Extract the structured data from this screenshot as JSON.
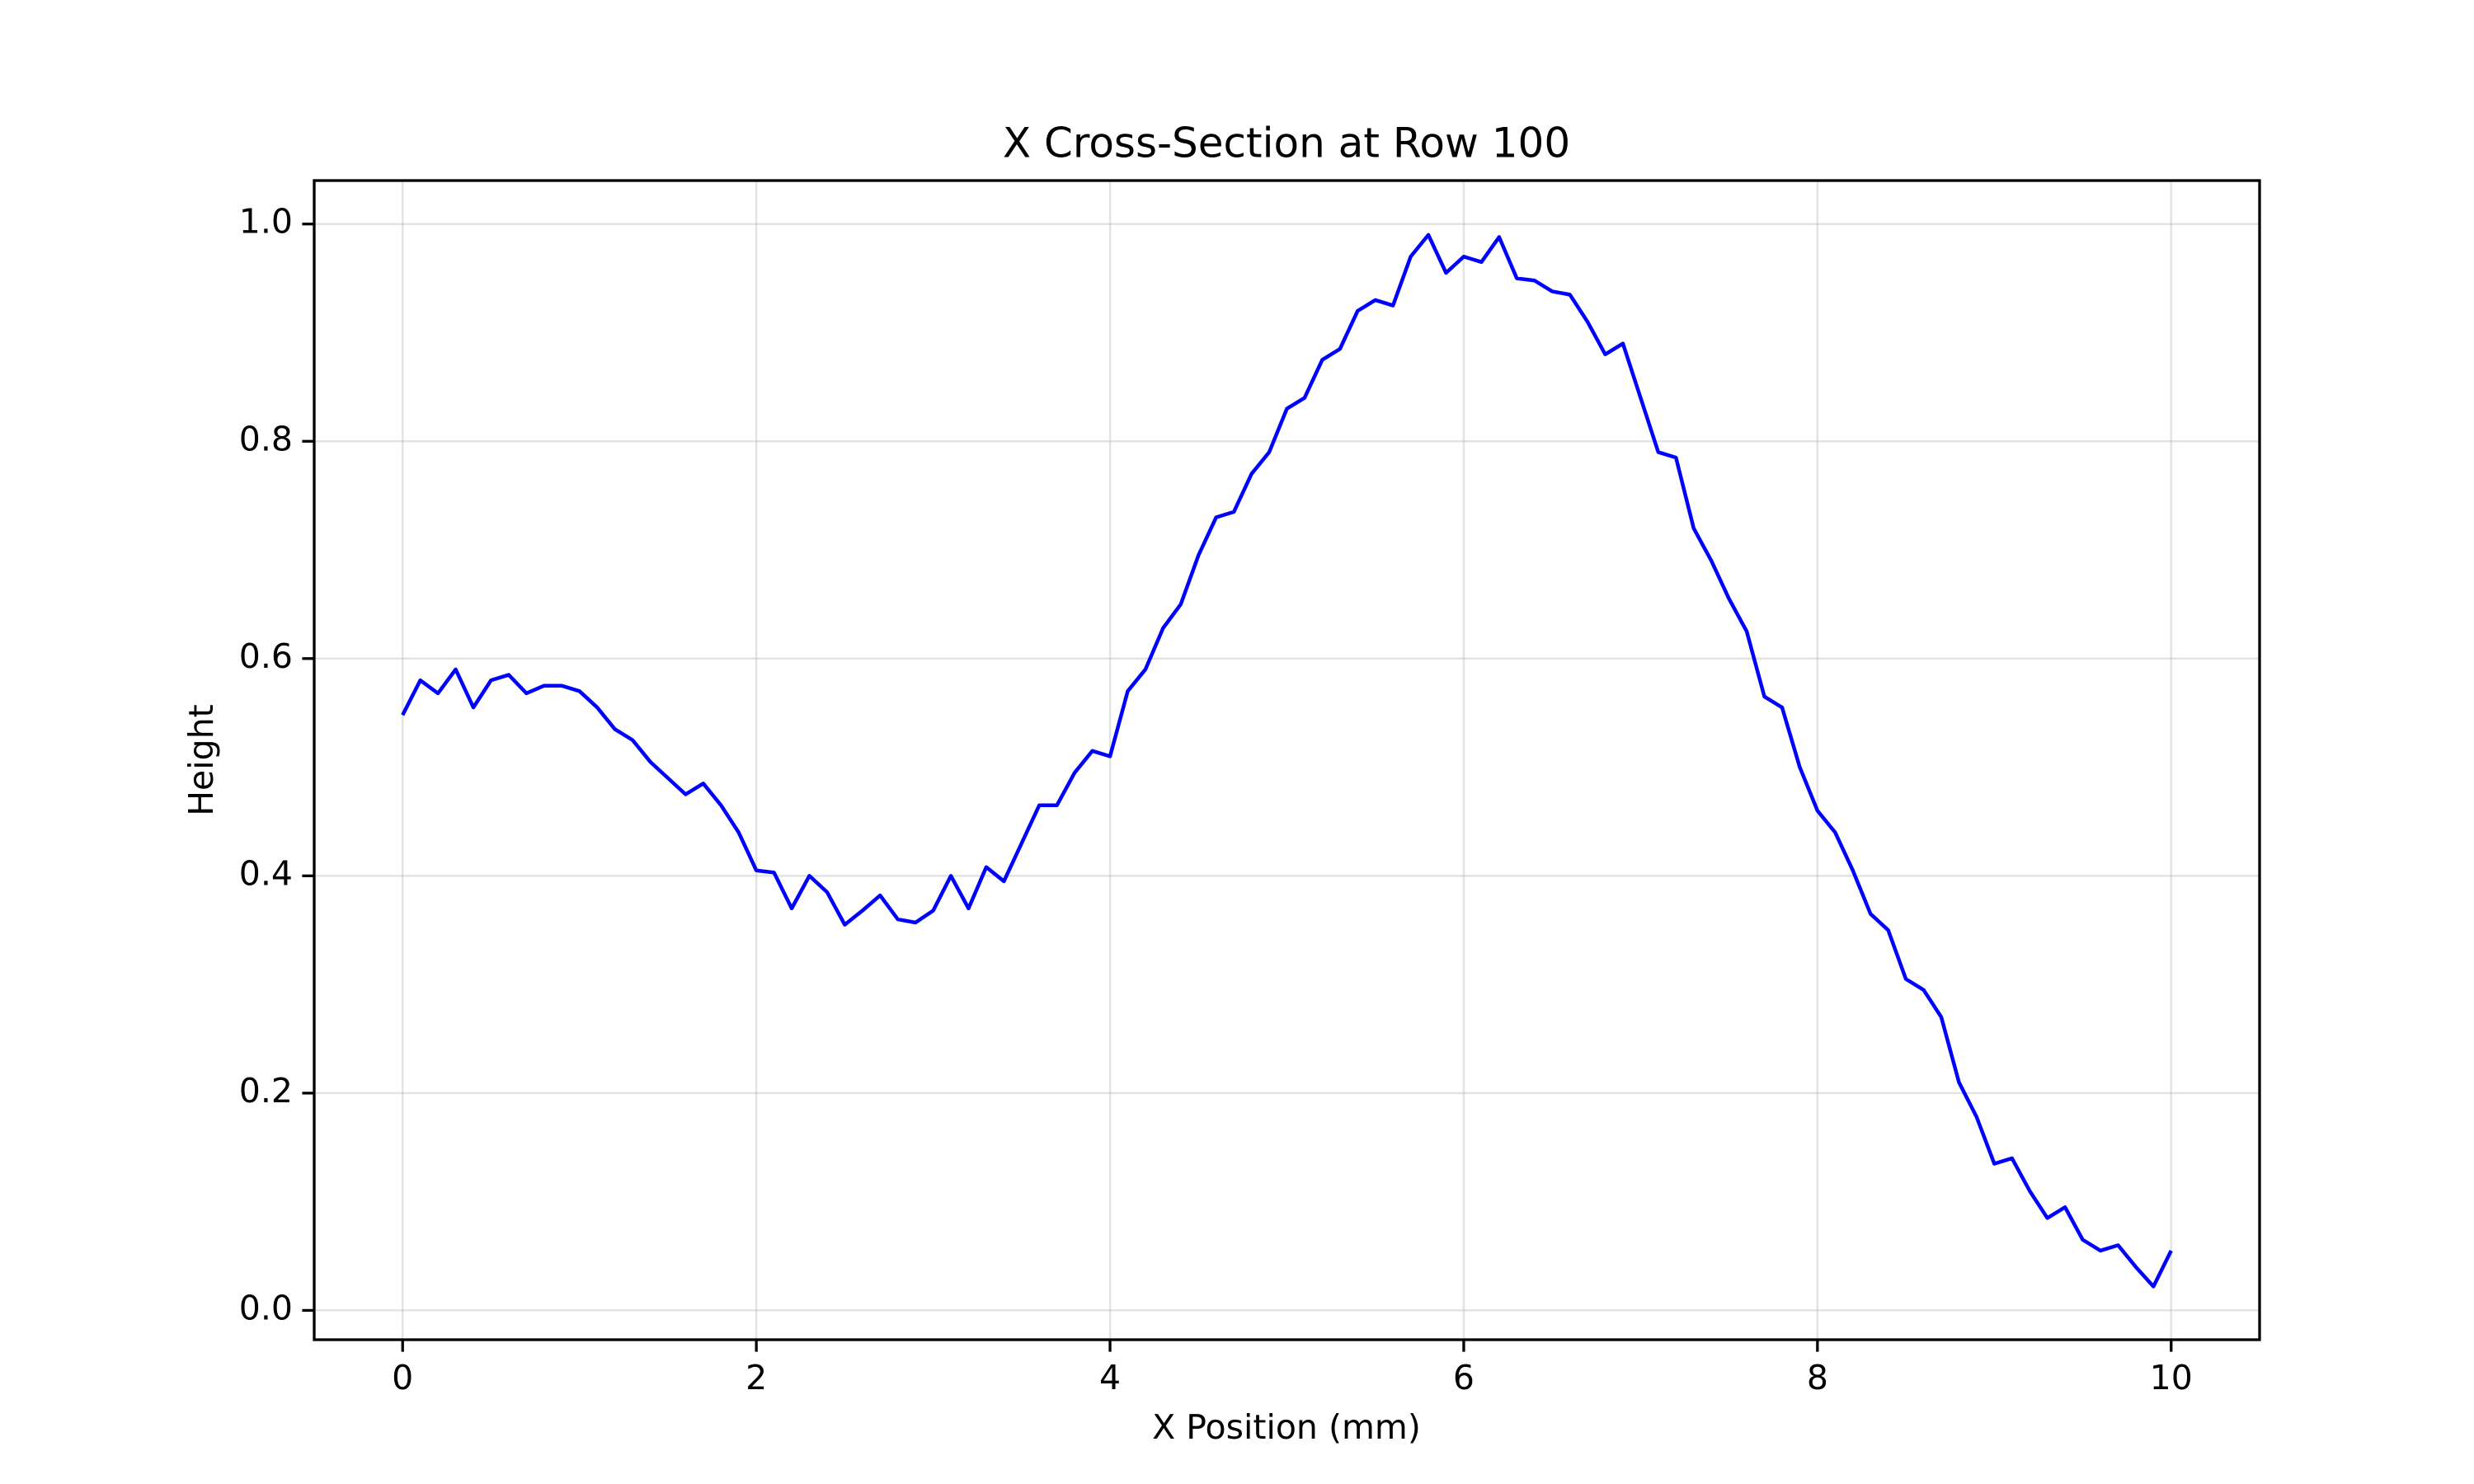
{
  "chart_data": {
    "type": "line",
    "title": "X Cross-Section at Row 100",
    "xlabel": "X Position (mm)",
    "ylabel": "Height",
    "x": [
      0,
      0.1,
      0.2,
      0.3,
      0.4,
      0.5,
      0.6,
      0.7,
      0.8,
      0.9,
      1,
      1.1,
      1.2,
      1.3,
      1.4,
      1.5,
      1.6,
      1.7,
      1.8,
      1.9,
      2,
      2.1,
      2.2,
      2.3,
      2.4,
      2.5,
      2.6,
      2.7,
      2.8,
      2.9,
      3,
      3.1,
      3.2,
      3.3,
      3.4,
      3.5,
      3.6,
      3.7,
      3.8,
      3.9,
      4,
      4.1,
      4.2,
      4.3,
      4.4,
      4.5,
      4.6,
      4.7,
      4.8,
      4.9,
      5,
      5.1,
      5.2,
      5.3,
      5.4,
      5.5,
      5.6,
      5.7,
      5.8,
      5.9,
      6,
      6.1,
      6.2,
      6.3,
      6.4,
      6.5,
      6.6,
      6.7,
      6.8,
      6.9,
      7,
      7.1,
      7.2,
      7.3,
      7.4,
      7.5,
      7.6,
      7.7,
      7.8,
      7.9,
      8,
      8.1,
      8.2,
      8.3,
      8.4,
      8.5,
      8.6,
      8.7,
      8.8,
      8.9,
      9,
      9.1,
      9.2,
      9.3,
      9.4,
      9.5,
      9.6,
      9.7,
      9.8,
      9.9,
      10
    ],
    "values": [
      0.548,
      0.58,
      0.568,
      0.59,
      0.555,
      0.58,
      0.585,
      0.568,
      0.575,
      0.575,
      0.57,
      0.555,
      0.535,
      0.525,
      0.505,
      0.49,
      0.475,
      0.485,
      0.465,
      0.44,
      0.405,
      0.403,
      0.37,
      0.4,
      0.385,
      0.355,
      0.368,
      0.382,
      0.36,
      0.357,
      0.368,
      0.4,
      0.37,
      0.408,
      0.395,
      0.43,
      0.465,
      0.465,
      0.495,
      0.515,
      0.51,
      0.57,
      0.59,
      0.628,
      0.65,
      0.695,
      0.73,
      0.735,
      0.77,
      0.79,
      0.83,
      0.84,
      0.875,
      0.885,
      0.92,
      0.93,
      0.925,
      0.97,
      0.99,
      0.955,
      0.97,
      0.965,
      0.988,
      0.95,
      0.948,
      0.938,
      0.935,
      0.91,
      0.88,
      0.89,
      0.84,
      0.79,
      0.785,
      0.72,
      0.69,
      0.655,
      0.625,
      0.565,
      0.555,
      0.5,
      0.46,
      0.44,
      0.405,
      0.365,
      0.35,
      0.305,
      0.295,
      0.27,
      0.21,
      0.178,
      0.135,
      0.14,
      0.11,
      0.085,
      0.095,
      0.065,
      0.055,
      0.06,
      0.04,
      0.022,
      0.055
    ],
    "color": "#0000ff",
    "xlim": [
      -0.5,
      10.5
    ],
    "xticks": [
      0,
      2,
      4,
      6,
      8,
      10
    ],
    "ylim": [
      -0.027,
      1.04
    ],
    "yticks": [
      {
        "value": 0,
        "label": "0.0"
      },
      0.2,
      0.4,
      0.6,
      0.8,
      {
        "value": 1,
        "label": "1.0"
      }
    ],
    "grid": true
  }
}
